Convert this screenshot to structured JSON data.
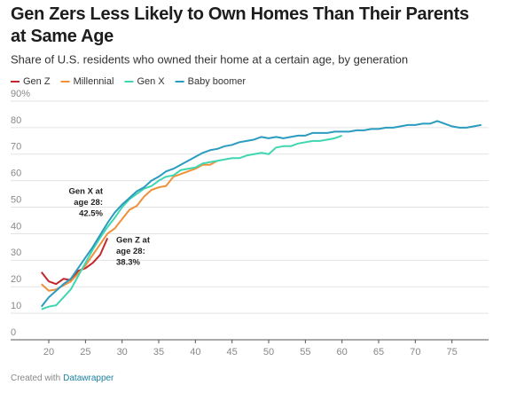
{
  "chart_data": {
    "type": "line",
    "title": "Gen Zers Less Likely to Own Homes Than Their Parents at Same Age",
    "subtitle": "Share of U.S. residents who owned their home at a certain age, by generation",
    "x": [
      19,
      20,
      21,
      22,
      23,
      24,
      25,
      26,
      27,
      28,
      29,
      30,
      31,
      32,
      33,
      34,
      35,
      36,
      37,
      38,
      39,
      40,
      41,
      42,
      43,
      44,
      45,
      46,
      47,
      48,
      49,
      50,
      51,
      52,
      53,
      54,
      55,
      56,
      57,
      58,
      59,
      60,
      61,
      62,
      63,
      64,
      65,
      66,
      67,
      68,
      69,
      70,
      71,
      72,
      73,
      74,
      75,
      76,
      77,
      78,
      79
    ],
    "series": [
      {
        "name": "Gen Z",
        "color": "#c0282d",
        "values": [
          25.5,
          22,
          21,
          23,
          22.5,
          26,
          27,
          29,
          32,
          38.3,
          null,
          null,
          null,
          null,
          null,
          null,
          null,
          null,
          null,
          null,
          null,
          null,
          null,
          null,
          null,
          null,
          null,
          null,
          null,
          null,
          null,
          null,
          null,
          null,
          null,
          null,
          null,
          null,
          null,
          null,
          null,
          null,
          null,
          null,
          null,
          null,
          null,
          null,
          null,
          null,
          null,
          null,
          null,
          null,
          null,
          null,
          null,
          null,
          null,
          null,
          null
        ]
      },
      {
        "name": "Millennial",
        "color": "#f0913a",
        "values": [
          21,
          18.5,
          19,
          20.5,
          22,
          25,
          28,
          32,
          36,
          40,
          42,
          45.5,
          49,
          50.5,
          54,
          56.5,
          57.5,
          58,
          61.5,
          62.5,
          63.5,
          64.5,
          66,
          66,
          67.5,
          null,
          null,
          null,
          null,
          null,
          null,
          null,
          null,
          null,
          null,
          null,
          null,
          null,
          null,
          null,
          null,
          null,
          null,
          null,
          null,
          null,
          null,
          null,
          null,
          null,
          null,
          null,
          null,
          null,
          null,
          null,
          null,
          null,
          null,
          null,
          null
        ]
      },
      {
        "name": "Gen X",
        "color": "#3fd6b0",
        "values": [
          11.5,
          12.5,
          13,
          16,
          19,
          24,
          29,
          34,
          38.5,
          42.5,
          46,
          50,
          53,
          55,
          57,
          58,
          60,
          61.5,
          62,
          64,
          64.5,
          65,
          66.5,
          67,
          67.5,
          68,
          68.5,
          68.5,
          69.5,
          70,
          70.5,
          70,
          72.5,
          73,
          73,
          74,
          74.5,
          75,
          75,
          75.5,
          76,
          77,
          null,
          null,
          null,
          null,
          null,
          null,
          null,
          null,
          null,
          null,
          null,
          null,
          null,
          null,
          null,
          null,
          null,
          null,
          null
        ]
      },
      {
        "name": "Baby boomer",
        "color": "#2b9bbf",
        "values": [
          12.5,
          16,
          18.5,
          21,
          23,
          27,
          31,
          35,
          39.5,
          44,
          48,
          51,
          53.5,
          56,
          57.5,
          60,
          61.5,
          63.5,
          64.5,
          66,
          67.5,
          69,
          70.5,
          71.5,
          72,
          73,
          73.5,
          74.5,
          75,
          75.5,
          76.5,
          76,
          76.5,
          76,
          76.5,
          77,
          77,
          78,
          78,
          78,
          78.5,
          78.5,
          78.5,
          79,
          79,
          79.5,
          79.5,
          80,
          80,
          80.5,
          81,
          81,
          81.5,
          81.5,
          82.5,
          81.5,
          80.5,
          80,
          80,
          80.5,
          81
        ]
      }
    ],
    "xlim": [
      18,
      80
    ],
    "xticks": [
      20,
      25,
      30,
      35,
      40,
      45,
      50,
      55,
      60,
      65,
      70,
      75
    ],
    "ylim": [
      0,
      90
    ],
    "yticks": [
      0,
      10,
      20,
      30,
      40,
      50,
      60,
      70,
      80,
      {
        "value": 90,
        "label": "90%"
      }
    ],
    "grid": true,
    "annotations": [
      {
        "lines": [
          "Gen X at",
          "age 28:",
          "42.5%"
        ]
      },
      {
        "lines": [
          "Gen Z at",
          "age 28:",
          "38.3%"
        ]
      }
    ]
  },
  "footer": {
    "prefix": "Created with",
    "brand": "Datawrapper"
  }
}
